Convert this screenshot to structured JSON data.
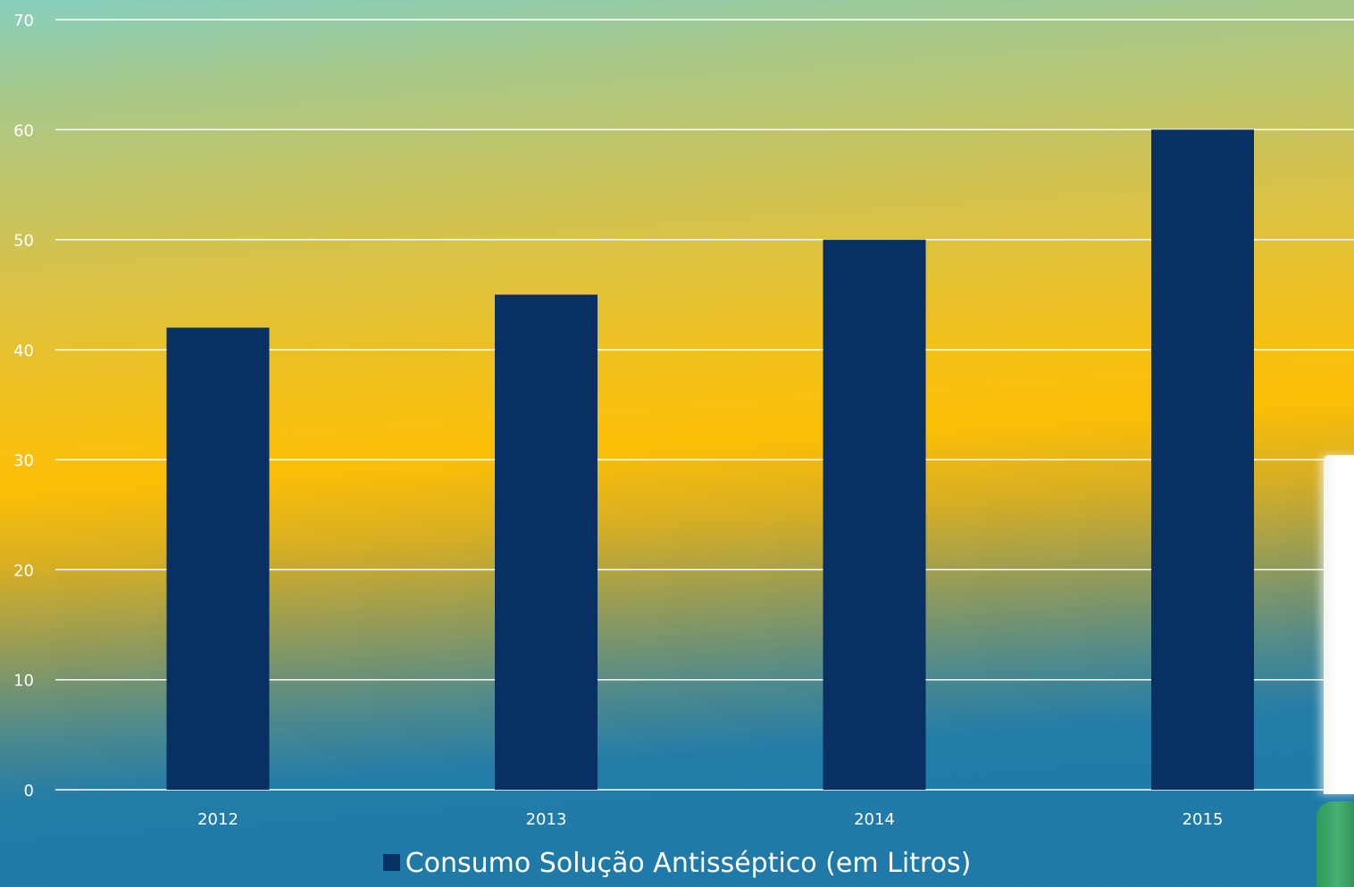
{
  "chart_data": {
    "type": "bar",
    "categories": [
      "2012",
      "2013",
      "2014",
      "2015"
    ],
    "series": [
      {
        "name": "Consumo Solução Antisséptico (em Litros)",
        "values": [
          42,
          45,
          50,
          60
        ],
        "color": "#083062"
      }
    ],
    "ylim": [
      0,
      70
    ],
    "yticks": [
      "0",
      "10",
      "20",
      "30",
      "40",
      "50",
      "60",
      "70"
    ],
    "grid": true,
    "legend_position": "bottom"
  },
  "colors": {
    "bar": "#083062",
    "gridline": "#ffffff",
    "tick_text": "#ffffff"
  },
  "decoration": {
    "right_edge_image": "hand-sanitizer-dispenser-icon"
  }
}
